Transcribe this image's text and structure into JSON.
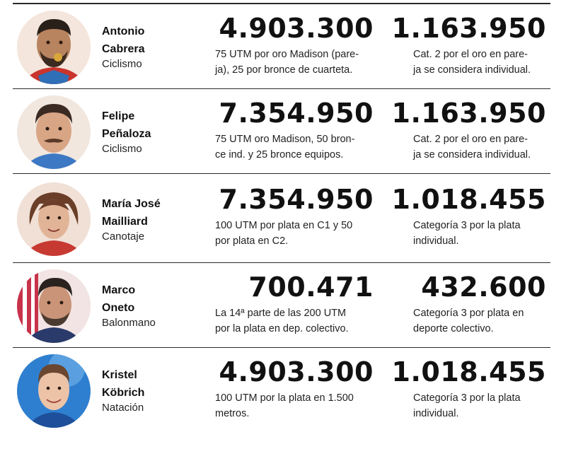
{
  "columns": [
    "athlete",
    "prize_clp",
    "monthly_clp"
  ],
  "rows": [
    {
      "name_line1": "Antonio",
      "name_line2": "Cabrera",
      "sport": "Ciclismo",
      "amount": "4.903.300",
      "amount_note_line1": "75 UTM por oro Madison (pare-",
      "amount_note_line2": "ja), 25 por bronce de cuarteta.",
      "second_amount": "1.163.950",
      "second_note_line1": "Cat. 2 por el oro en pare-",
      "second_note_line2": "ja se considera individual."
    },
    {
      "name_line1": "Felipe",
      "name_line2": "Peñaloza",
      "sport": "Ciclismo",
      "amount": "7.354.950",
      "amount_note_line1": "75 UTM oro Madison, 50 bron-",
      "amount_note_line2": "ce ind. y 25 bronce equipos.",
      "second_amount": "1.163.950",
      "second_note_line1": "Cat. 2 por el oro en pare-",
      "second_note_line2": "ja se considera individual."
    },
    {
      "name_line1": "María José",
      "name_line2": "Mailliard",
      "sport": "Canotaje",
      "amount": "7.354.950",
      "amount_note_line1": "100 UTM por plata en C1 y 50",
      "amount_note_line2": "por plata en C2.",
      "second_amount": "1.018.455",
      "second_note_line1": "Categoría 3 por la plata",
      "second_note_line2": "individual."
    },
    {
      "name_line1": "Marco",
      "name_line2": "Oneto",
      "sport": "Balonmano",
      "amount": "700.471",
      "amount_note_line1": "La 14ª parte de las 200 UTM",
      "amount_note_line2": "por la plata en dep. colectivo.",
      "second_amount": "432.600",
      "second_note_line1": "Categoría 3 por plata en",
      "second_note_line2": "deporte colectivo."
    },
    {
      "name_line1": "Kristel",
      "name_line2": "Köbrich",
      "sport": "Natación",
      "amount": "4.903.300",
      "amount_note_line1": "100 UTM por la plata en 1.500",
      "amount_note_line2": "metros.",
      "second_amount": "1.018.455",
      "second_note_line1": "Categoría 3 por la plata",
      "second_note_line2": "individual."
    }
  ],
  "colors": {
    "rule": "#2a2a2a",
    "text": "#111111"
  }
}
